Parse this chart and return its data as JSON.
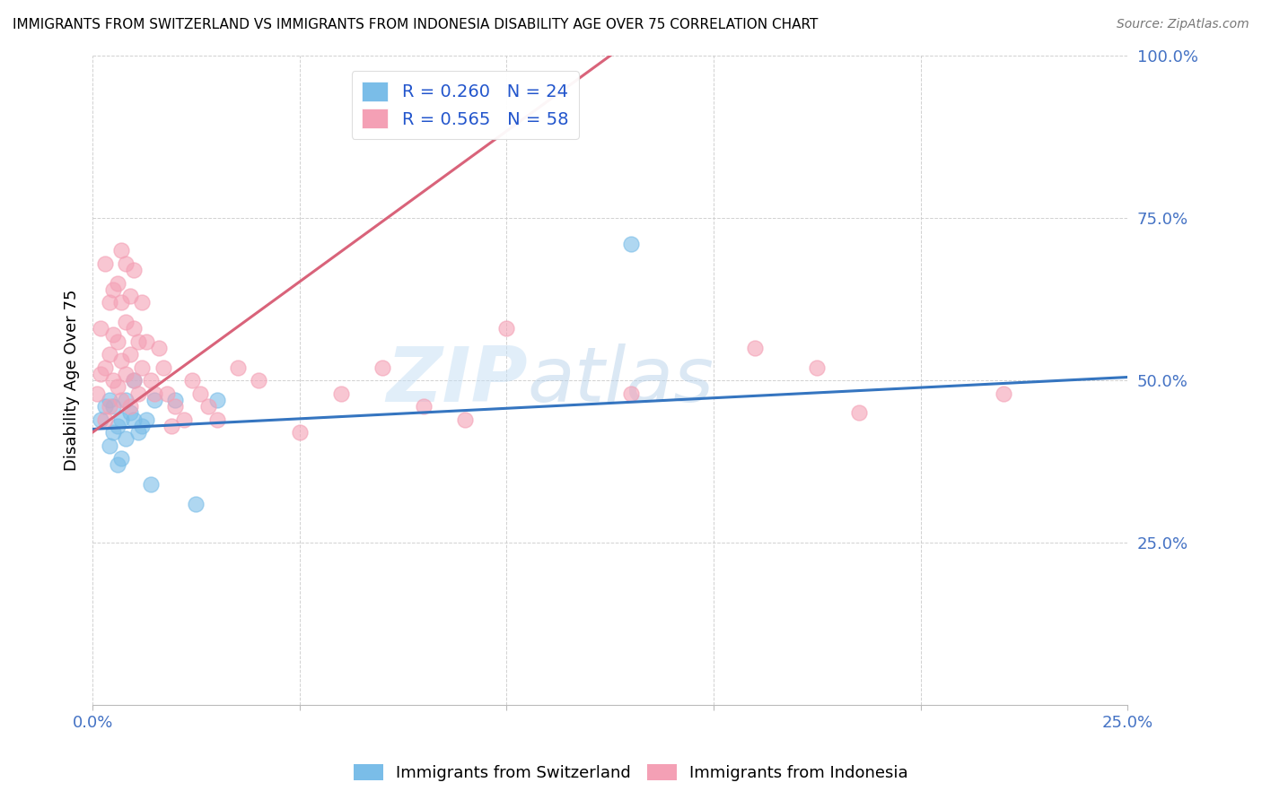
{
  "title": "IMMIGRANTS FROM SWITZERLAND VS IMMIGRANTS FROM INDONESIA DISABILITY AGE OVER 75 CORRELATION CHART",
  "source": "Source: ZipAtlas.com",
  "ylabel": "Disability Age Over 75",
  "xlim": [
    0.0,
    0.25
  ],
  "ylim": [
    0.0,
    1.0
  ],
  "legend_r_swiss": "R = 0.260",
  "legend_n_swiss": "N = 24",
  "legend_r_indo": "R = 0.565",
  "legend_n_indo": "N = 58",
  "color_swiss": "#7abde8",
  "color_indo": "#f4a0b5",
  "color_swiss_line": "#3575c0",
  "color_indo_line": "#d9637a",
  "watermark_zip": "ZIP",
  "watermark_atlas": "atlas",
  "swiss_x": [
    0.002,
    0.003,
    0.004,
    0.004,
    0.005,
    0.005,
    0.006,
    0.006,
    0.007,
    0.007,
    0.008,
    0.008,
    0.009,
    0.01,
    0.01,
    0.011,
    0.012,
    0.013,
    0.014,
    0.015,
    0.02,
    0.025,
    0.03,
    0.13
  ],
  "swiss_y": [
    0.44,
    0.46,
    0.47,
    0.4,
    0.42,
    0.46,
    0.37,
    0.43,
    0.38,
    0.44,
    0.41,
    0.47,
    0.45,
    0.44,
    0.5,
    0.42,
    0.43,
    0.44,
    0.34,
    0.47,
    0.47,
    0.31,
    0.47,
    0.71
  ],
  "indo_x": [
    0.001,
    0.002,
    0.002,
    0.003,
    0.003,
    0.003,
    0.004,
    0.004,
    0.004,
    0.005,
    0.005,
    0.005,
    0.006,
    0.006,
    0.006,
    0.007,
    0.007,
    0.007,
    0.007,
    0.008,
    0.008,
    0.008,
    0.009,
    0.009,
    0.009,
    0.01,
    0.01,
    0.01,
    0.011,
    0.011,
    0.012,
    0.012,
    0.013,
    0.014,
    0.015,
    0.016,
    0.017,
    0.018,
    0.019,
    0.02,
    0.022,
    0.024,
    0.026,
    0.028,
    0.03,
    0.035,
    0.04,
    0.05,
    0.06,
    0.07,
    0.08,
    0.09,
    0.1,
    0.13,
    0.16,
    0.175,
    0.185,
    0.22
  ],
  "indo_y": [
    0.48,
    0.51,
    0.58,
    0.44,
    0.52,
    0.68,
    0.46,
    0.54,
    0.62,
    0.5,
    0.57,
    0.64,
    0.49,
    0.56,
    0.65,
    0.47,
    0.53,
    0.62,
    0.7,
    0.51,
    0.59,
    0.68,
    0.46,
    0.54,
    0.63,
    0.5,
    0.58,
    0.67,
    0.48,
    0.56,
    0.52,
    0.62,
    0.56,
    0.5,
    0.48,
    0.55,
    0.52,
    0.48,
    0.43,
    0.46,
    0.44,
    0.5,
    0.48,
    0.46,
    0.44,
    0.52,
    0.5,
    0.42,
    0.48,
    0.52,
    0.46,
    0.44,
    0.58,
    0.48,
    0.55,
    0.52,
    0.45,
    0.48
  ],
  "swiss_line_x": [
    0.0,
    0.25
  ],
  "swiss_line_y": [
    0.425,
    0.505
  ],
  "indo_line_x": [
    0.0,
    0.125
  ],
  "indo_line_y": [
    0.42,
    1.0
  ]
}
